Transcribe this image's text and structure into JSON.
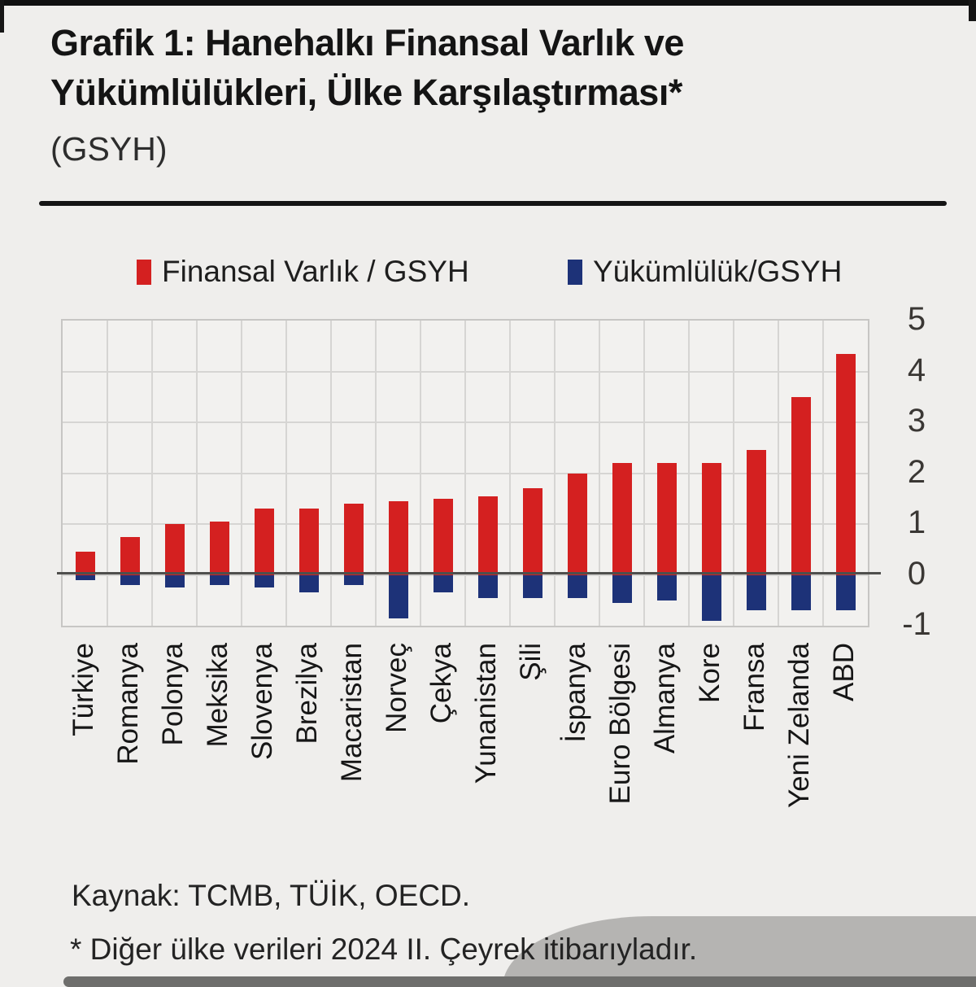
{
  "page": {
    "title_line1": "Grafik 1: Hanehalkı Finansal Varlık ve",
    "title_line2": "Yükümlülükleri, Ülke Karşılaştırması*",
    "subtitle": "(GSYH)",
    "source_note": "Kaynak: TCMB, TÜİK, OECD.",
    "footnote": "* Diğer ülke verileri 2024 II. Çeyrek itibarıyladır."
  },
  "legend": {
    "items": [
      {
        "label": "Finansal Varlık / GSYH",
        "color": "#d42020"
      },
      {
        "label": "Yükümlülük/GSYH",
        "color": "#1d3278"
      }
    ]
  },
  "colors": {
    "asset_red": "#d42020",
    "liability_navy": "#1d3278",
    "background": "#efeeec",
    "gridline": "#d6d5d3",
    "zero_line": "#4f4f4d"
  },
  "chart_data": {
    "type": "bar",
    "title": "Hanehalkı Finansal Varlık ve Yükümlülükleri, Ülke Karşılaştırması (GSYH)",
    "categories": [
      "Türkiye",
      "Romanya",
      "Polonya",
      "Meksika",
      "Slovenya",
      "Brezilya",
      "Macaristan",
      "Norveç",
      "Çekya",
      "Yunanistan",
      "Şili",
      "İspanya",
      "Euro Bölgesi",
      "Almanya",
      "Kore",
      "Fransa",
      "Yeni Zelanda",
      "ABD"
    ],
    "series": [
      {
        "name": "Finansal Varlık / GSYH",
        "color": "#d42020",
        "values": [
          0.45,
          0.75,
          1.0,
          1.05,
          1.3,
          1.3,
          1.4,
          1.45,
          1.5,
          1.55,
          1.7,
          2.0,
          2.2,
          2.2,
          2.2,
          2.45,
          3.5,
          4.35
        ]
      },
      {
        "name": "Yükümlülük/GSYH",
        "color": "#1d3278",
        "values": [
          -0.1,
          -0.2,
          -0.25,
          -0.2,
          -0.25,
          -0.35,
          -0.2,
          -0.85,
          -0.35,
          -0.45,
          -0.45,
          -0.45,
          -0.55,
          -0.5,
          -0.9,
          -0.7,
          -0.7,
          -0.7
        ]
      }
    ],
    "xlabel": "",
    "ylabel": "",
    "ylim": [
      -1,
      5
    ],
    "yticks": [
      5,
      4,
      3,
      2,
      1,
      0,
      -1
    ],
    "grid": true,
    "legend_position": "top",
    "y_axis_side": "right"
  }
}
